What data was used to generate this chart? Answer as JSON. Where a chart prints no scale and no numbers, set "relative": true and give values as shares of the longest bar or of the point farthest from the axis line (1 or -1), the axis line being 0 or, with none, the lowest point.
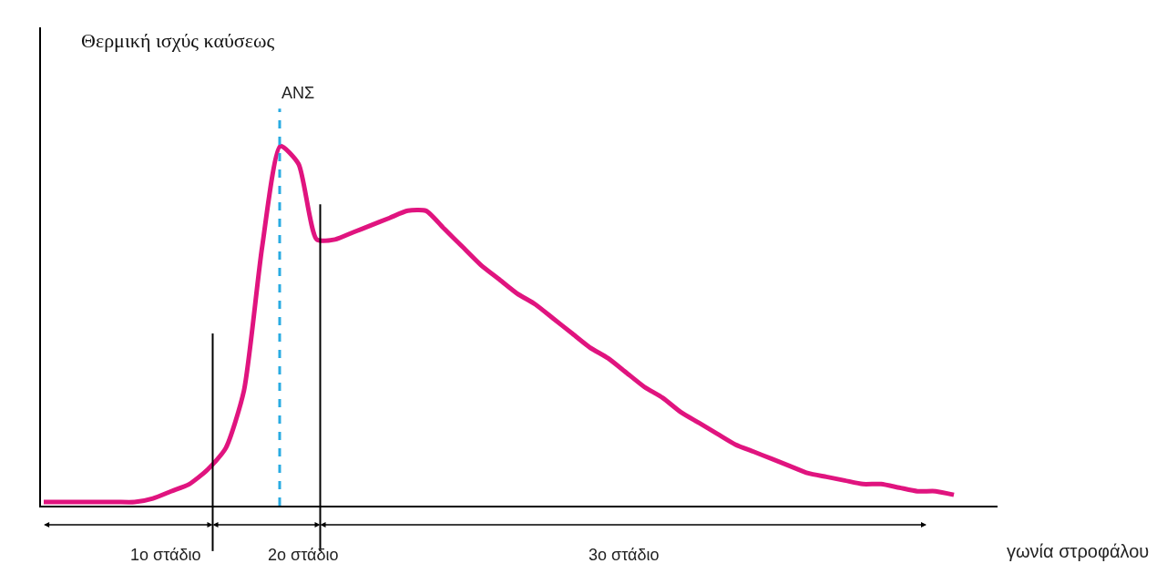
{
  "chart_data": {
    "type": "line",
    "relative": true,
    "ylabel": "Θερμική ισχύς καύσεως",
    "xlabel": "γωνία στροφάλου",
    "categories": [
      null,
      null,
      null,
      null,
      null,
      null,
      null,
      null,
      null,
      null,
      null,
      null,
      null,
      null,
      null,
      null,
      null,
      null,
      null,
      null,
      null,
      null,
      null,
      null,
      null,
      null,
      null,
      null,
      null,
      null,
      null,
      null,
      null,
      null,
      null,
      null,
      null,
      null,
      null,
      null,
      null,
      null,
      null,
      null,
      null,
      null,
      null,
      null,
      null,
      null,
      null
    ],
    "series": [
      {
        "color": "#e0147f",
        "values": [
          0.01,
          0.01,
          0.01,
          0.01,
          0.01,
          0.01,
          0.02,
          0.04,
          0.06,
          0.1,
          0.16,
          0.32,
          0.72,
          1.0,
          0.95,
          0.74,
          0.74,
          0.76,
          0.78,
          0.8,
          0.82,
          0.82,
          0.77,
          0.72,
          0.67,
          0.63,
          0.59,
          0.56,
          0.52,
          0.48,
          0.44,
          0.41,
          0.37,
          0.33,
          0.3,
          0.26,
          0.23,
          0.2,
          0.17,
          0.15,
          0.13,
          0.11,
          0.09,
          0.08,
          0.07,
          0.06,
          0.06,
          0.05,
          0.04,
          0.04,
          0.03
        ]
      }
    ],
    "annotations": [
      "ΑΝΣ",
      "1ο στάδιο",
      "2ο στάδιο",
      "3ο στάδιο"
    ],
    "marker": "none",
    "line_style": "solid"
  }
}
